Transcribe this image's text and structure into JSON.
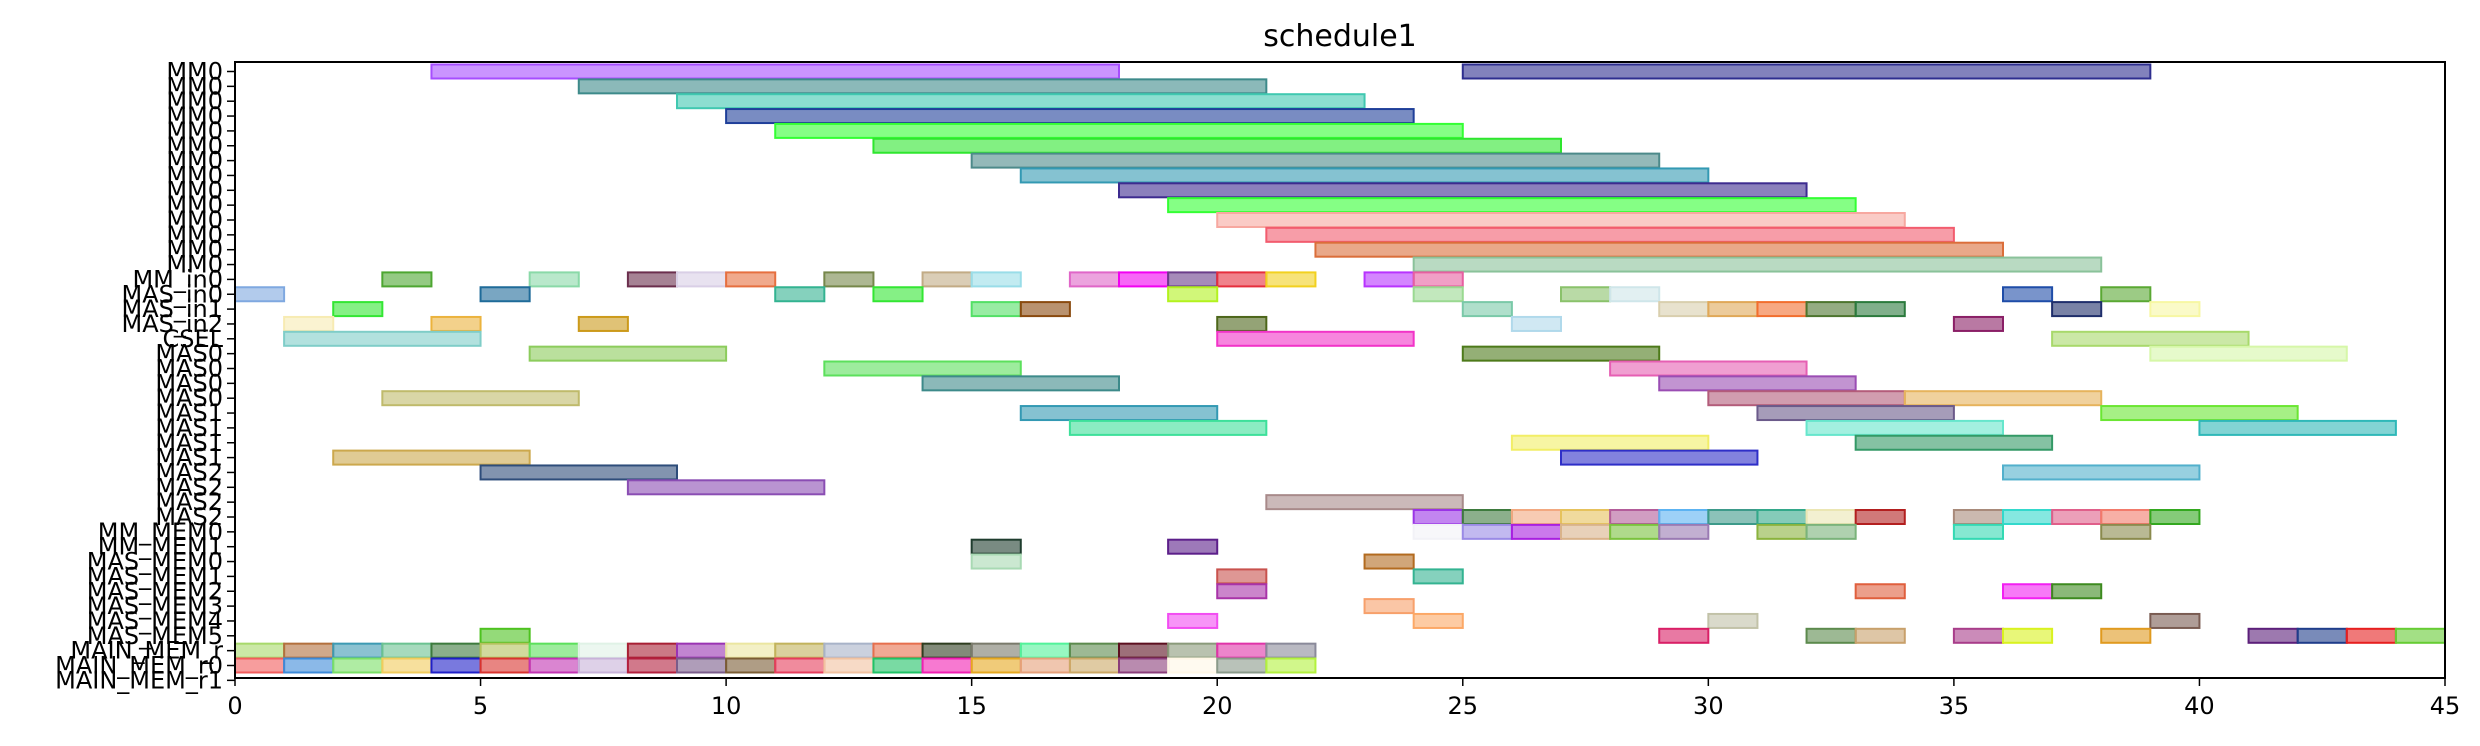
{
  "chart_data": {
    "type": "gantt",
    "title": "schedule1",
    "xlim": [
      0,
      45
    ],
    "xticks": [
      0,
      5,
      10,
      15,
      20,
      25,
      30,
      35,
      40,
      45
    ],
    "grid": false,
    "rows": [
      "MM0",
      "MM0",
      "MM0",
      "MM0",
      "MM0",
      "MM0",
      "MM0",
      "MM0",
      "MM0",
      "MM0",
      "MM0",
      "MM0",
      "MM0",
      "MM0",
      "MM_in0",
      "MAS_in0",
      "MAS_in1",
      "MAS_in2",
      "CSEL",
      "MAS0",
      "MAS0",
      "MAS0",
      "MAS0",
      "MAS1",
      "MAS1",
      "MAS1",
      "MAS1",
      "MAS2",
      "MAS2",
      "MAS2",
      "MAS2",
      "MM_MEM0",
      "MM_MEM1",
      "MAS_MEM0",
      "MAS_MEM1",
      "MAS_MEM2",
      "MAS_MEM3",
      "MAS_MEM4",
      "MAS_MEM5",
      "MAIN_MEM_r",
      "MAIN_MEM_r0",
      "MAIN_MEM_r1"
    ],
    "bars": [
      [
        0,
        4,
        18,
        "#a64dff"
      ],
      [
        0,
        25,
        39,
        "#2e2e8f"
      ],
      [
        1,
        7,
        21,
        "#3d8a8a"
      ],
      [
        2,
        9,
        23,
        "#40c8b0"
      ],
      [
        3,
        10,
        24,
        "#1f3f99"
      ],
      [
        4,
        11,
        25,
        "#33ff33"
      ],
      [
        5,
        13,
        27,
        "#2ee62e"
      ],
      [
        6,
        15,
        29,
        "#4d8a8a"
      ],
      [
        7,
        16,
        30,
        "#3399b3"
      ],
      [
        8,
        18,
        32,
        "#3d2b8f"
      ],
      [
        9,
        19,
        33,
        "#33ff33"
      ],
      [
        10,
        20,
        34,
        "#f7a8a0"
      ],
      [
        11,
        21,
        35,
        "#f25c6e"
      ],
      [
        12,
        22,
        36,
        "#db6e3a"
      ],
      [
        13,
        24,
        38,
        "#8ac29a"
      ],
      [
        14,
        3,
        4,
        "#4da631"
      ],
      [
        14,
        6,
        7,
        "#8ad9a8"
      ],
      [
        14,
        8,
        9,
        "#6b2e4d"
      ],
      [
        14,
        9,
        10,
        "#d9cfe6"
      ],
      [
        14,
        10,
        11,
        "#e66f3f"
      ],
      [
        14,
        12,
        13,
        "#76874a"
      ],
      [
        14,
        14,
        15,
        "#c2ab85"
      ],
      [
        14,
        15,
        16,
        "#99dde8"
      ],
      [
        14,
        17,
        18,
        "#e066c8"
      ],
      [
        14,
        18,
        19,
        "#f200f2"
      ],
      [
        14,
        19,
        20,
        "#6b3d8a"
      ],
      [
        14,
        20,
        21,
        "#e62e3d"
      ],
      [
        14,
        21,
        22,
        "#f2d11f"
      ],
      [
        14,
        23,
        24,
        "#b833ff"
      ],
      [
        14,
        24,
        25,
        "#e65fa0"
      ],
      [
        15,
        0,
        1,
        "#7fa8e0"
      ],
      [
        15,
        5,
        6,
        "#1f6b99"
      ],
      [
        15,
        11,
        12,
        "#33b391"
      ],
      [
        15,
        13,
        14,
        "#33e633"
      ],
      [
        15,
        19,
        20,
        "#b3f21f"
      ],
      [
        15,
        24,
        25,
        "#9ad991"
      ],
      [
        15,
        27,
        28,
        "#8ac26b"
      ],
      [
        15,
        28,
        29,
        "#cfe6ea"
      ],
      [
        15,
        36,
        37,
        "#1f4da8"
      ],
      [
        15,
        38,
        39,
        "#5aa833"
      ],
      [
        16,
        2,
        3,
        "#33e633"
      ],
      [
        16,
        15,
        16,
        "#53e066"
      ],
      [
        16,
        16,
        17,
        "#8a4a0f"
      ],
      [
        16,
        25,
        26,
        "#7ac9a8"
      ],
      [
        16,
        29,
        30,
        "#d9cfae"
      ],
      [
        16,
        30,
        31,
        "#e0a858"
      ],
      [
        16,
        31,
        32,
        "#f26e2e"
      ],
      [
        16,
        32,
        33,
        "#4d752e"
      ],
      [
        16,
        33,
        34,
        "#2b7a3d"
      ],
      [
        16,
        37,
        38,
        "#1f2e6b"
      ],
      [
        16,
        39,
        40,
        "#f7f7a3"
      ],
      [
        17,
        1,
        2,
        "#f7ebb3"
      ],
      [
        17,
        4,
        5,
        "#ebb33d"
      ],
      [
        17,
        7,
        8,
        "#cc9a1a"
      ],
      [
        17,
        20,
        21,
        "#4d661a"
      ],
      [
        17,
        26,
        27,
        "#b0d9eb"
      ],
      [
        17,
        35,
        36,
        "#8a1f66"
      ],
      [
        18,
        1,
        5,
        "#7fcdc8"
      ],
      [
        18,
        20,
        24,
        "#f233c8"
      ],
      [
        18,
        37,
        41,
        "#a8d96b"
      ],
      [
        19,
        6,
        10,
        "#8ccc5c"
      ],
      [
        19,
        25,
        29,
        "#4d7a1a"
      ],
      [
        19,
        39,
        43,
        "#d6f7a8"
      ],
      [
        20,
        12,
        16,
        "#5ce05c"
      ],
      [
        20,
        28,
        32,
        "#e65fb3"
      ],
      [
        21,
        14,
        18,
        "#3d8a8a"
      ],
      [
        21,
        29,
        33,
        "#9a4db3"
      ],
      [
        22,
        3,
        7,
        "#bfba6b"
      ],
      [
        22,
        30,
        34,
        "#b35c7a"
      ],
      [
        22,
        34,
        38,
        "#e6b35c"
      ],
      [
        23,
        16,
        20,
        "#3399b3"
      ],
      [
        23,
        31,
        35,
        "#6b5a8a"
      ],
      [
        23,
        38,
        42,
        "#6be633"
      ],
      [
        24,
        17,
        21,
        "#3de09a"
      ],
      [
        24,
        32,
        36,
        "#66e6cc"
      ],
      [
        24,
        40,
        44,
        "#2eb8b8"
      ],
      [
        25,
        26,
        30,
        "#f2ee66"
      ],
      [
        25,
        33,
        37,
        "#339966"
      ],
      [
        26,
        2,
        6,
        "#cca84d"
      ],
      [
        26,
        27,
        31,
        "#2e2ec8"
      ],
      [
        27,
        5,
        9,
        "#2e4d7a"
      ],
      [
        27,
        36,
        40,
        "#52b0cc"
      ],
      [
        28,
        8,
        12,
        "#8a4db3"
      ],
      [
        29,
        21,
        25,
        "#a88a8a"
      ],
      [
        30,
        24,
        25,
        "#9a33e6"
      ],
      [
        30,
        25,
        26,
        "#3d7a3d"
      ],
      [
        30,
        26,
        27,
        "#f2a880"
      ],
      [
        30,
        27,
        28,
        "#e6c25c"
      ],
      [
        30,
        28,
        29,
        "#b35c9a"
      ],
      [
        30,
        29,
        30,
        "#5cb3f2"
      ],
      [
        30,
        30,
        31,
        "#3d9a8a"
      ],
      [
        30,
        31,
        32,
        "#33a88a"
      ],
      [
        30,
        32,
        33,
        "#ebe6b3"
      ],
      [
        30,
        33,
        34,
        "#b31f1f"
      ],
      [
        30,
        35,
        36,
        "#a88a7a"
      ],
      [
        30,
        36,
        37,
        "#33d9cc"
      ],
      [
        30,
        37,
        38,
        "#e05f8a"
      ],
      [
        30,
        38,
        39,
        "#f27a6b"
      ],
      [
        30,
        39,
        40,
        "#33a81f"
      ],
      [
        31,
        24,
        25,
        "#f2f2f7"
      ],
      [
        31,
        25,
        26,
        "#9a8ae6"
      ],
      [
        31,
        26,
        27,
        "#a81fe0"
      ],
      [
        31,
        27,
        28,
        "#d9b38a"
      ],
      [
        31,
        28,
        29,
        "#7ac23d"
      ],
      [
        31,
        29,
        30,
        "#9a7ab3"
      ],
      [
        31,
        31,
        32,
        "#8ab33d"
      ],
      [
        31,
        32,
        33,
        "#7ab37a"
      ],
      [
        31,
        35,
        36,
        "#33d9b3"
      ],
      [
        31,
        38,
        39,
        "#8a8a4d"
      ],
      [
        32,
        15,
        16,
        "#1f3d2e"
      ],
      [
        32,
        19,
        20,
        "#5c1f8a"
      ],
      [
        33,
        15,
        16,
        "#a8d9b3"
      ],
      [
        33,
        23,
        24,
        "#b36b1f"
      ],
      [
        34,
        20,
        21,
        "#c8524d"
      ],
      [
        34,
        24,
        25,
        "#33b391"
      ],
      [
        35,
        20,
        21,
        "#a833a8"
      ],
      [
        35,
        33,
        34,
        "#e05f3d"
      ],
      [
        35,
        36,
        37,
        "#f21ff2"
      ],
      [
        35,
        37,
        38,
        "#3d8a1f"
      ],
      [
        36,
        23,
        24,
        "#f7a06b"
      ],
      [
        37,
        19,
        20,
        "#f24df2"
      ],
      [
        37,
        24,
        25,
        "#fca866"
      ],
      [
        37,
        30,
        31,
        "#c2c2a8"
      ],
      [
        37,
        39,
        40,
        "#7a5c52"
      ],
      [
        38,
        5,
        6,
        "#4dc21f"
      ],
      [
        38,
        29,
        30,
        "#d91f66"
      ],
      [
        38,
        32,
        33,
        "#5c8a4d"
      ],
      [
        38,
        33,
        34,
        "#c8a06b"
      ],
      [
        38,
        35,
        36,
        "#a83d8a"
      ],
      [
        38,
        36,
        37,
        "#d9f21f"
      ],
      [
        38,
        38,
        39,
        "#e09a1f"
      ],
      [
        38,
        41,
        42,
        "#5c1f7a"
      ],
      [
        38,
        42,
        43,
        "#1f3d8a"
      ],
      [
        38,
        43,
        44,
        "#e61f1f"
      ],
      [
        38,
        44,
        45,
        "#66cc33"
      ],
      [
        39,
        0,
        1,
        "#a8d96b"
      ],
      [
        39,
        1,
        2,
        "#b3703d"
      ],
      [
        39,
        2,
        3,
        "#3d9ab3"
      ],
      [
        39,
        3,
        4,
        "#6bc291"
      ],
      [
        39,
        4,
        5,
        "#3d7a3d"
      ],
      [
        39,
        5,
        6,
        "#b3c25c"
      ],
      [
        39,
        6,
        7,
        "#5ce05c"
      ],
      [
        39,
        7,
        8,
        "#e0f2e6"
      ],
      [
        39,
        8,
        9,
        "#a81f33"
      ],
      [
        39,
        9,
        10,
        "#9a33b3"
      ],
      [
        39,
        10,
        11,
        "#ebe6a0"
      ],
      [
        39,
        11,
        12,
        "#c2b35c"
      ],
      [
        39,
        12,
        13,
        "#a8b3c8"
      ],
      [
        39,
        13,
        14,
        "#e66f4d"
      ],
      [
        39,
        14,
        15,
        "#2e3d1f"
      ],
      [
        39,
        15,
        16,
        "#7a7a6b"
      ],
      [
        39,
        16,
        17,
        "#52f29a"
      ],
      [
        39,
        17,
        18,
        "#5c8a4d"
      ],
      [
        39,
        18,
        19,
        "#5c0f1f"
      ],
      [
        39,
        19,
        20,
        "#8a9a7a"
      ],
      [
        39,
        20,
        21,
        "#e033a8"
      ],
      [
        39,
        21,
        22,
        "#8a8a9a"
      ],
      [
        40,
        0,
        1,
        "#f25c5c"
      ],
      [
        40,
        1,
        2,
        "#3d8ad9"
      ],
      [
        40,
        2,
        3,
        "#7ae066"
      ],
      [
        40,
        3,
        4,
        "#f2cc5c"
      ],
      [
        40,
        4,
        5,
        "#1f1fc8"
      ],
      [
        40,
        5,
        6,
        "#d9332e"
      ],
      [
        40,
        6,
        7,
        "#c233b3"
      ],
      [
        40,
        7,
        8,
        "#c8b3d9"
      ],
      [
        40,
        8,
        9,
        "#b31f3d"
      ],
      [
        40,
        9,
        10,
        "#7a5c8a"
      ],
      [
        40,
        10,
        11,
        "#7a5c33"
      ],
      [
        40,
        11,
        12,
        "#e63d5c"
      ],
      [
        40,
        12,
        13,
        "#f2c2a0"
      ],
      [
        40,
        13,
        14,
        "#1fc266"
      ],
      [
        40,
        14,
        15,
        "#f21fb3"
      ],
      [
        40,
        15,
        16,
        "#e6a81f"
      ],
      [
        40,
        16,
        17,
        "#e6a07a"
      ],
      [
        40,
        17,
        18,
        "#cca866"
      ],
      [
        40,
        18,
        19,
        "#8a3d7a"
      ],
      [
        40,
        19,
        20,
        "#fff7e6"
      ],
      [
        40,
        20,
        21,
        "#8a9a8a"
      ],
      [
        40,
        21,
        22,
        "#b3f23d"
      ]
    ]
  }
}
